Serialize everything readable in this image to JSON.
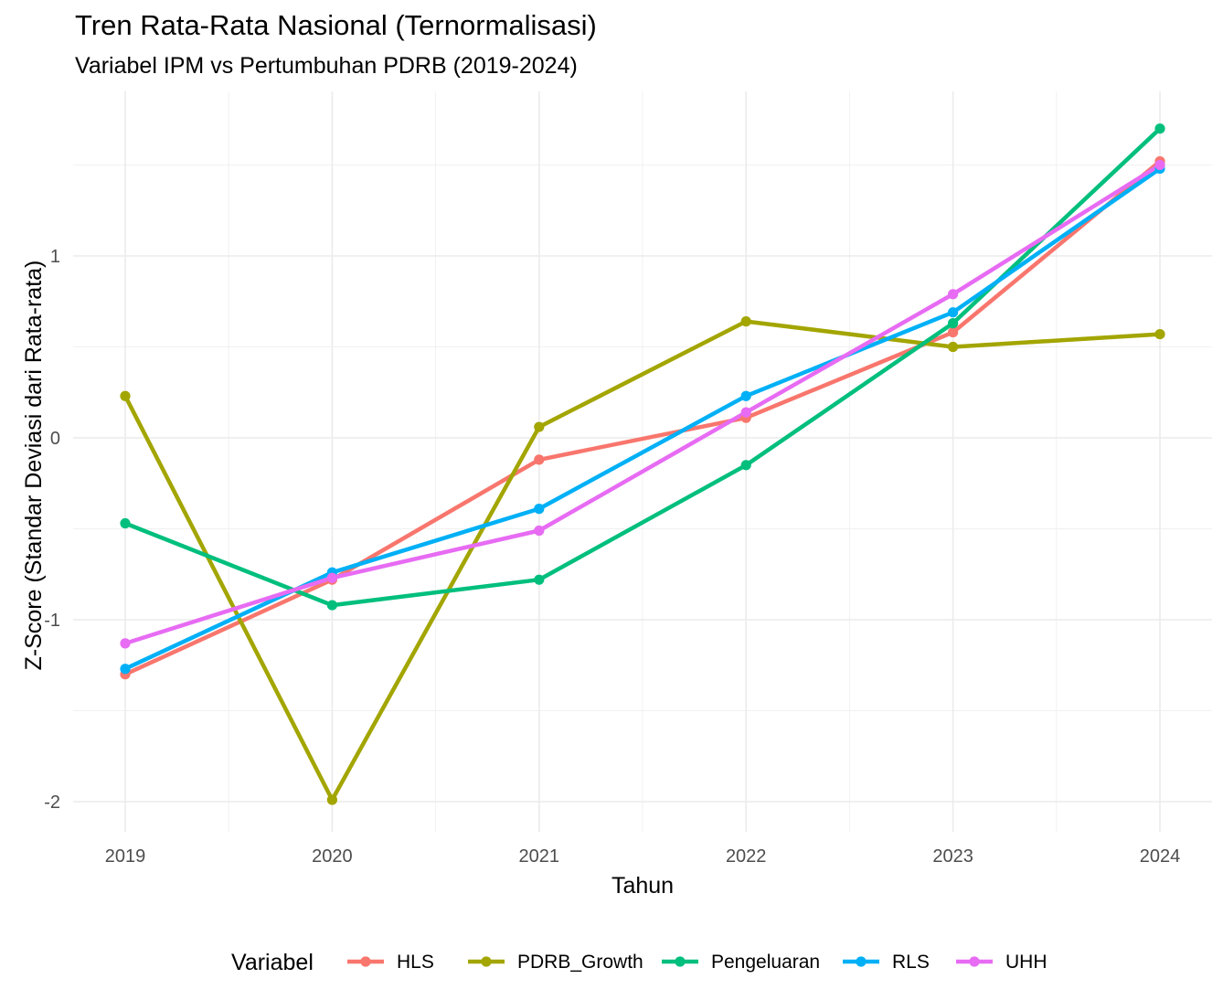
{
  "chart_data": {
    "type": "line",
    "title": "Tren Rata-Rata Nasional (Ternormalisasi)",
    "subtitle": "Variabel IPM vs Pertumbuhan PDRB (2019-2024)",
    "xlabel": "Tahun",
    "ylabel": "Z-Score (Standar Deviasi dari Rata-rata)",
    "x": [
      "2019",
      "2020",
      "2021",
      "2022",
      "2023",
      "2024"
    ],
    "y_ticks": [
      "-2",
      "-1",
      "0",
      "1"
    ],
    "ylim": [
      -2.1,
      1.9
    ],
    "grid": true,
    "legend": {
      "title": "Variabel",
      "position": "bottom"
    },
    "series": [
      {
        "name": "HLS",
        "color": "#F8766D",
        "values": [
          -1.3,
          -0.78,
          -0.12,
          0.11,
          0.58,
          1.52
        ]
      },
      {
        "name": "PDRB_Growth",
        "color": "#A3A500",
        "values": [
          0.23,
          -1.99,
          0.06,
          0.64,
          0.5,
          0.57
        ]
      },
      {
        "name": "Pengeluaran",
        "color": "#00BF7D",
        "values": [
          -0.47,
          -0.92,
          -0.78,
          -0.15,
          0.63,
          1.7
        ]
      },
      {
        "name": "RLS",
        "color": "#00B0F6",
        "values": [
          -1.27,
          -0.74,
          -0.39,
          0.23,
          0.69,
          1.48
        ]
      },
      {
        "name": "UHH",
        "color": "#E76BF3",
        "values": [
          -1.13,
          -0.77,
          -0.51,
          0.14,
          0.79,
          1.5
        ]
      }
    ]
  }
}
